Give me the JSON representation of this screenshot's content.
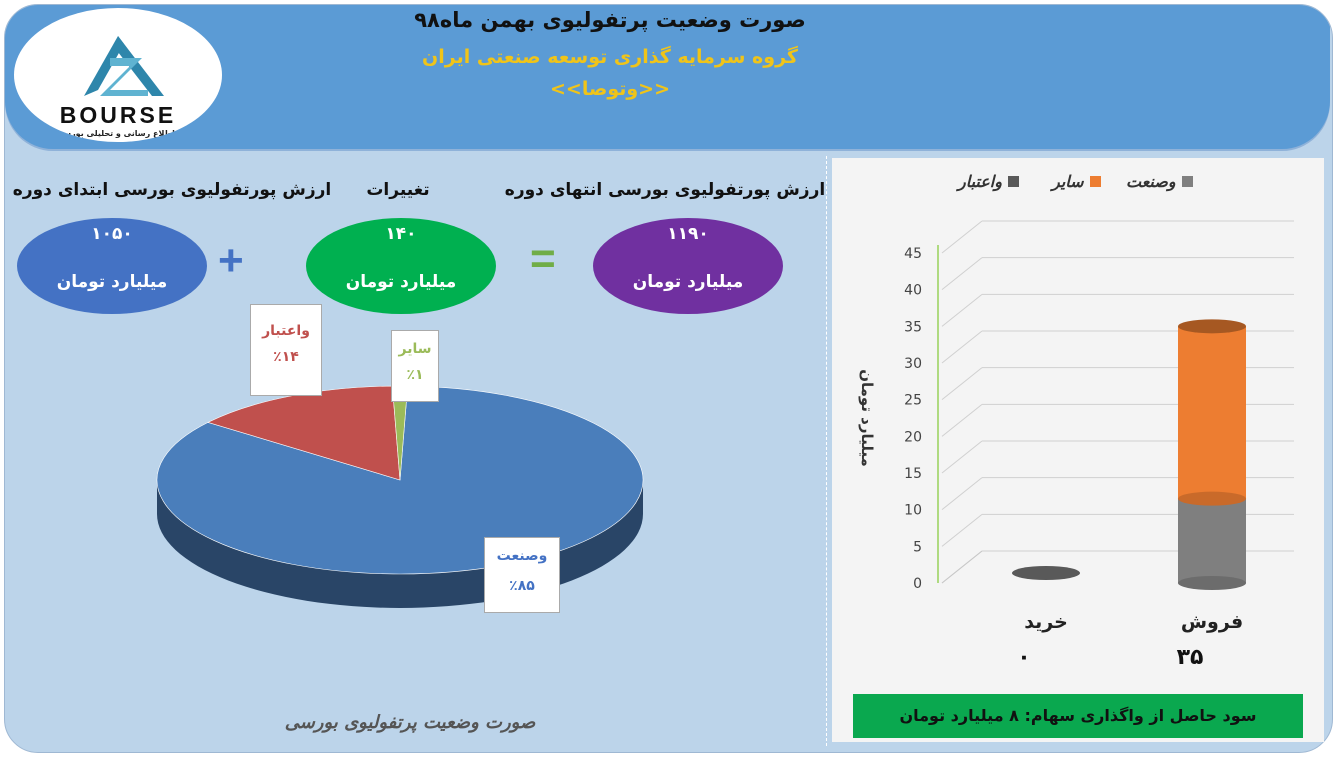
{
  "header": {
    "title": "صورت وضعیت پرتفولیوی بهمن ماه۹۸",
    "subtitle": "گروه سرمایه گذاری توسعه صنعتی ایران",
    "symbol": "<<وتوصا>>",
    "logo_text": "BOURSE",
    "logo_sub": "پایگاه اطلاع رسانی و تحلیلی بورس ایران"
  },
  "equation": {
    "start_label": "ارزش پورتفولیوی بورسی ابتدای دوره",
    "start_value": "۱۰۵۰",
    "change_label": "تغییرات",
    "change_value": "۱۴۰",
    "end_label": "ارزش پورتفولیوی بورسی انتهای دوره",
    "end_value": "۱۱۹۰",
    "unit": "میلیارد تومان",
    "plus": "+",
    "equals": "=",
    "colors": {
      "start": "#4472c4",
      "change": "#00b050",
      "end": "#7030a0",
      "plus": "#4472c4",
      "equals": "#70ad47"
    }
  },
  "pie_caption": "صورت وضعیت پرتفولیوی بورسی",
  "profit_text": "سود حاصل از واگذاری سهام: ۸ میلیارد تومان",
  "chart_data": [
    {
      "type": "pie",
      "title": "",
      "slices": [
        {
          "label": "وصنعت",
          "value": 85,
          "display": "٪۸۵",
          "color": "#4a7ebb"
        },
        {
          "label": "واعتبار",
          "value": 14,
          "display": "٪۱۴",
          "color": "#c0504d"
        },
        {
          "label": "سایر",
          "value": 1,
          "display": "٪۱",
          "color": "#9bbb59"
        }
      ]
    },
    {
      "type": "bar",
      "stacked": true,
      "title": "",
      "categories": [
        "فروش",
        "خرید"
      ],
      "category_values": [
        "۳۵",
        "۰"
      ],
      "ylabel": "میلیارد تومان",
      "ylim": [
        0,
        45
      ],
      "yticks": [
        0,
        5,
        10,
        15,
        20,
        25,
        30,
        35,
        40,
        45
      ],
      "legend_position": "top",
      "series": [
        {
          "name": "وصنعت",
          "color": "#7f7f7f",
          "values": [
            11.5,
            0
          ]
        },
        {
          "name": "سایر",
          "color": "#ed7d31",
          "values": [
            23.5,
            0
          ]
        },
        {
          "name": "واعتبار",
          "color": "#595959",
          "values": [
            0,
            0
          ]
        }
      ]
    }
  ]
}
